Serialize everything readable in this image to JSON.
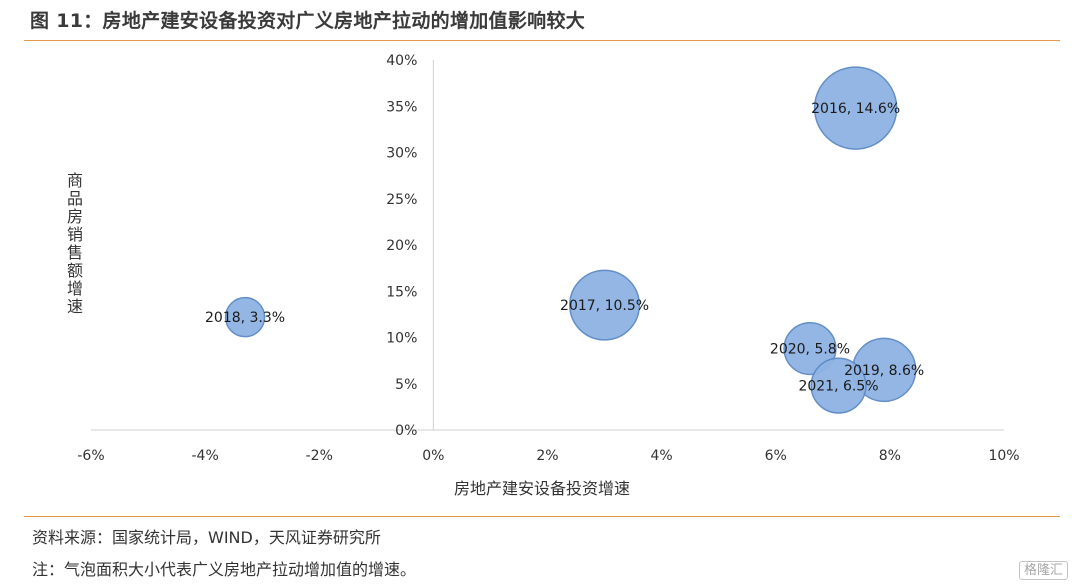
{
  "header": {
    "title": "图 11：房地产建安设备投资对广义房地产拉动的增加值影响较大"
  },
  "chart_data": {
    "type": "bubble",
    "xlabel": "房地产建安设备投资增速",
    "ylabel": "商品房销售额增速",
    "xlim": [
      -6,
      10
    ],
    "ylim": [
      0,
      40
    ],
    "x_ticks": [
      "-6%",
      "-4%",
      "-2%",
      "0%",
      "2%",
      "4%",
      "6%",
      "8%",
      "10%"
    ],
    "y_ticks": [
      "0%",
      "5%",
      "10%",
      "15%",
      "20%",
      "25%",
      "30%",
      "35%",
      "40%"
    ],
    "grid": false,
    "legend": "none",
    "bubble_color": "#8fb3e3",
    "bubble_edge": "#5b8ac6",
    "points": [
      {
        "x": 7.4,
        "y": 34.8,
        "size": 14.6,
        "label": "2016, 14.6%"
      },
      {
        "x": 3.0,
        "y": 13.5,
        "size": 10.5,
        "label": "2017, 10.5%"
      },
      {
        "x": -3.3,
        "y": 12.2,
        "size": 3.3,
        "label": "2018, 3.3%"
      },
      {
        "x": 7.9,
        "y": 6.5,
        "size": 8.6,
        "label": "2019, 8.6%"
      },
      {
        "x": 6.6,
        "y": 8.8,
        "size": 5.8,
        "label": "2020, 5.8%"
      },
      {
        "x": 7.1,
        "y": 4.8,
        "size": 6.5,
        "label": "2021, 6.5%"
      }
    ]
  },
  "footer": {
    "source": "资料来源：国家统计局，WIND，天风证券研究所",
    "note": "注：气泡面积大小代表广义房地产拉动增加值的增速。",
    "watermark": "格隆汇"
  }
}
